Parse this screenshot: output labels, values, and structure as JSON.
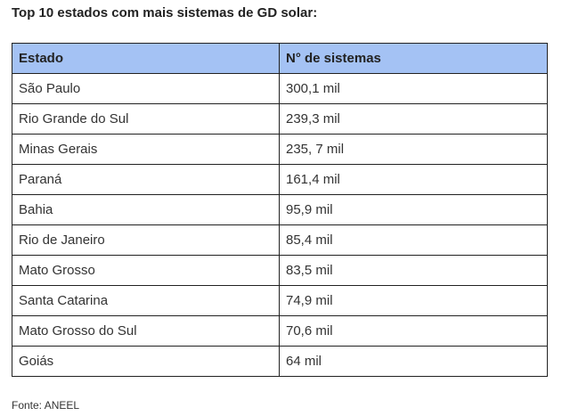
{
  "title": "Top 10 estados com mais sistemas de GD solar:",
  "source": "Fonte: ANEEL",
  "colors": {
    "header_bg": "#a4c2f4",
    "border": "#222222",
    "text": "#222222"
  },
  "chart_data": {
    "type": "table",
    "title": "Top 10 estados com mais sistemas de GD solar:",
    "columns": [
      "Estado",
      "N° de sistemas"
    ],
    "rows": [
      [
        "São Paulo",
        "300,1 mil"
      ],
      [
        "Rio Grande do Sul",
        "239,3 mil"
      ],
      [
        "Minas Gerais",
        "235, 7 mil"
      ],
      [
        "Paraná",
        "161,4 mil"
      ],
      [
        "Bahia",
        "95,9 mil"
      ],
      [
        "Rio de Janeiro",
        "85,4 mil"
      ],
      [
        "Mato Grosso",
        "83,5 mil"
      ],
      [
        "Santa Catarina",
        "74,9 mil"
      ],
      [
        "Mato Grosso do Sul",
        "70,6 mil"
      ],
      [
        "Goiás",
        "64 mil"
      ]
    ]
  }
}
